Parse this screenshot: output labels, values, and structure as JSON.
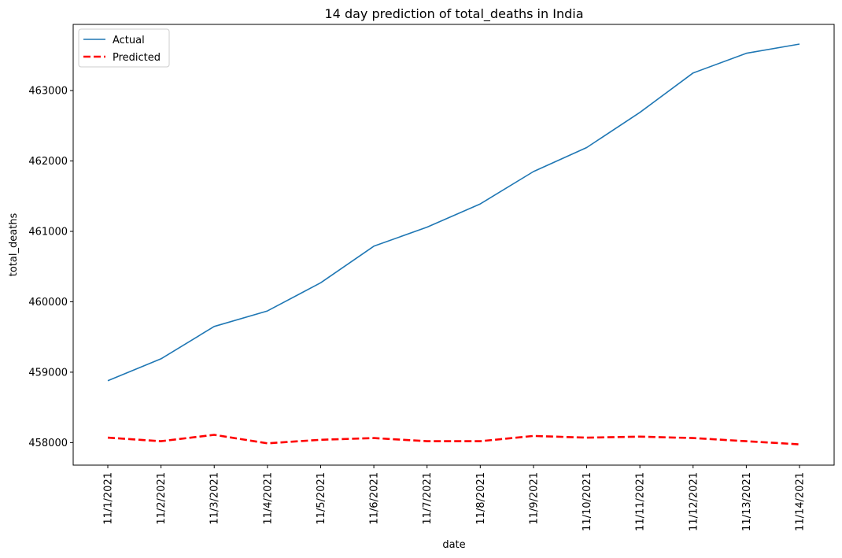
{
  "chart_data": {
    "type": "line",
    "title": "14 day prediction of total_deaths in India",
    "xlabel": "date",
    "ylabel": "total_deaths",
    "categories": [
      "11/1/2021",
      "11/2/2021",
      "11/3/2021",
      "11/4/2021",
      "11/5/2021",
      "11/6/2021",
      "11/7/2021",
      "11/8/2021",
      "11/9/2021",
      "11/10/2021",
      "11/11/2021",
      "11/12/2021",
      "11/13/2021",
      "11/14/2021"
    ],
    "yticks": [
      458000,
      459000,
      460000,
      461000,
      462000,
      463000
    ],
    "ylim": [
      457680,
      463940
    ],
    "grid": false,
    "legend_position": "top-left",
    "series": [
      {
        "name": "Actual",
        "color": "#1f77b4",
        "style": "solid",
        "values": [
          458880,
          459190,
          459650,
          459870,
          460270,
          460790,
          461060,
          461390,
          461850,
          462190,
          462690,
          463250,
          463530,
          463660
        ]
      },
      {
        "name": "Predicted",
        "color": "#ff0000",
        "style": "dashed",
        "values": [
          458070,
          458020,
          458110,
          457990,
          458040,
          458065,
          458020,
          458020,
          458095,
          458070,
          458085,
          458065,
          458020,
          457975
        ]
      }
    ]
  }
}
